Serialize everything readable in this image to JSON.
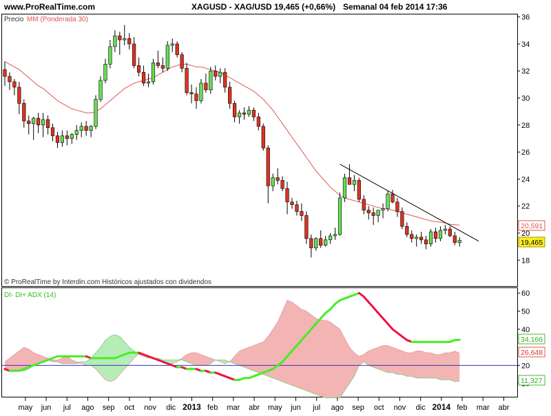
{
  "header": {
    "site": "www.ProRealTime.com",
    "instrument": "XAGUSD - XAG/USD",
    "quote": "19,465 (+0,66%)",
    "period": "Semanal  04 feb 2014 17:36"
  },
  "price_panel": {
    "legend_price": "Precio",
    "legend_ma": "MM (Ponderada 30)",
    "footer": "© ProRealTime by Interdin.com  Históricos ajustados con dividendos",
    "y_ticks": [
      "36",
      "34",
      "32",
      "30",
      "28",
      "26",
      "24",
      "22",
      "20",
      "18"
    ],
    "badge_ma": "20,591",
    "badge_price": "19,465"
  },
  "adx_panel": {
    "legend": "DI- DI+ ADX (14)",
    "y_ticks": [
      "60",
      "50",
      "40",
      "20",
      "10"
    ],
    "badge_adx": "34,166",
    "badge_di_minus": "26,648",
    "badge_di_plus": "11,327"
  },
  "x_axis": {
    "labels": [
      "may",
      "jun",
      "jul",
      "ago",
      "sep",
      "oct",
      "nov",
      "dic",
      "2013",
      "feb",
      "mar",
      "abr",
      "may",
      "jun",
      "jul",
      "ago",
      "sep",
      "oct",
      "nov",
      "dic",
      "2014",
      "feb",
      "mar",
      "abr"
    ]
  },
  "colors": {
    "up": "#66dd55",
    "down": "#dd3322",
    "ma": "#dd5555",
    "adx_rising": "#44ee22",
    "adx_falling": "#ee1144",
    "di_minus_fill": "#f3b4b4",
    "di_plus_fill": "#b6edb6",
    "ref_line": "#3333bb",
    "badge_price": "#ffee22"
  },
  "chart_data": [
    {
      "type": "candlestick",
      "title": "XAGUSD - XAG/USD",
      "period": "weekly",
      "ylim": [
        17,
        36.8
      ],
      "y_ticks": [
        18,
        20,
        22,
        24,
        26,
        28,
        30,
        32,
        34,
        36
      ],
      "x_start": "2012-04-02",
      "x_step_days": 7,
      "ohlc": [
        [
          32.1,
          32.7,
          30.9,
          31.6
        ],
        [
          31.6,
          31.9,
          30.6,
          31.2
        ],
        [
          31.2,
          31.4,
          30.2,
          30.8
        ],
        [
          30.8,
          31.2,
          28.8,
          29.6
        ],
        [
          29.6,
          29.9,
          27.8,
          28.3
        ],
        [
          28.3,
          28.7,
          27.3,
          28.1
        ],
        [
          28.1,
          28.6,
          26.9,
          28.5
        ],
        [
          28.5,
          28.9,
          27.4,
          28.0
        ],
        [
          28.0,
          28.9,
          27.1,
          28.4
        ],
        [
          28.4,
          28.7,
          27.3,
          27.8
        ],
        [
          27.8,
          28.1,
          26.8,
          27.2
        ],
        [
          27.2,
          27.5,
          26.3,
          26.7
        ],
        [
          26.7,
          27.6,
          26.4,
          27.2
        ],
        [
          27.2,
          27.6,
          26.5,
          27.0
        ],
        [
          27.0,
          27.4,
          26.6,
          27.3
        ],
        [
          27.3,
          28.0,
          26.9,
          27.6
        ],
        [
          27.6,
          28.2,
          27.1,
          27.9
        ],
        [
          27.9,
          28.3,
          27.2,
          27.6
        ],
        [
          27.6,
          28.0,
          27.1,
          27.9
        ],
        [
          27.9,
          30.2,
          27.7,
          29.9
        ],
        [
          29.9,
          31.6,
          29.7,
          31.3
        ],
        [
          31.3,
          32.9,
          31.1,
          32.5
        ],
        [
          32.5,
          34.3,
          32.2,
          33.8
        ],
        [
          33.8,
          35.0,
          33.4,
          34.6
        ],
        [
          34.6,
          34.9,
          33.2,
          34.3
        ],
        [
          34.3,
          35.4,
          33.9,
          34.4
        ],
        [
          34.4,
          34.8,
          33.6,
          34.0
        ],
        [
          34.0,
          34.5,
          32.2,
          32.4
        ],
        [
          32.4,
          33.0,
          31.6,
          31.9
        ],
        [
          31.9,
          32.4,
          30.9,
          31.1
        ],
        [
          31.1,
          31.8,
          30.8,
          31.2
        ],
        [
          31.2,
          32.9,
          31.0,
          32.6
        ],
        [
          32.6,
          33.5,
          32.2,
          32.4
        ],
        [
          32.4,
          33.0,
          31.9,
          32.2
        ],
        [
          32.2,
          34.2,
          32.0,
          33.9
        ],
        [
          33.9,
          34.4,
          33.4,
          34.0
        ],
        [
          34.0,
          34.2,
          33.0,
          33.2
        ],
        [
          33.2,
          33.4,
          31.9,
          32.2
        ],
        [
          32.2,
          32.6,
          30.2,
          30.4
        ],
        [
          30.4,
          31.0,
          29.6,
          30.3
        ],
        [
          30.3,
          30.8,
          29.2,
          29.8
        ],
        [
          29.8,
          31.4,
          29.6,
          31.1
        ],
        [
          31.1,
          31.8,
          30.4,
          30.6
        ],
        [
          30.6,
          32.3,
          30.3,
          32.0
        ],
        [
          32.0,
          32.4,
          31.3,
          31.6
        ],
        [
          31.6,
          32.2,
          31.1,
          31.9
        ],
        [
          31.9,
          32.2,
          30.4,
          30.8
        ],
        [
          30.8,
          31.2,
          29.2,
          29.6
        ],
        [
          29.6,
          29.8,
          28.2,
          28.6
        ],
        [
          28.6,
          29.1,
          28.1,
          28.9
        ],
        [
          28.9,
          29.3,
          28.4,
          28.8
        ],
        [
          28.8,
          29.4,
          28.6,
          29.1
        ],
        [
          29.1,
          29.3,
          28.3,
          28.6
        ],
        [
          28.6,
          28.9,
          27.6,
          27.9
        ],
        [
          27.9,
          28.1,
          26.1,
          26.3
        ],
        [
          26.3,
          26.5,
          22.2,
          23.5
        ],
        [
          23.5,
          24.4,
          23.1,
          24.1
        ],
        [
          24.1,
          24.8,
          23.6,
          23.9
        ],
        [
          23.9,
          24.2,
          23.1,
          23.3
        ],
        [
          23.3,
          23.8,
          21.4,
          22.3
        ],
        [
          22.3,
          22.6,
          21.8,
          22.1
        ],
        [
          22.1,
          22.4,
          21.3,
          21.6
        ],
        [
          21.6,
          22.2,
          20.9,
          21.3
        ],
        [
          21.3,
          21.6,
          19.2,
          19.6
        ],
        [
          19.6,
          19.9,
          18.2,
          18.9
        ],
        [
          18.9,
          19.7,
          18.7,
          19.6
        ],
        [
          19.6,
          20.2,
          18.9,
          19.1
        ],
        [
          19.1,
          19.8,
          19.0,
          19.5
        ],
        [
          19.5,
          20.0,
          19.2,
          19.8
        ],
        [
          19.8,
          20.4,
          19.5,
          19.9
        ],
        [
          19.9,
          23.0,
          19.8,
          22.6
        ],
        [
          22.6,
          24.4,
          22.3,
          24.1
        ],
        [
          24.1,
          25.1,
          23.6,
          23.6
        ],
        [
          23.6,
          24.3,
          23.1,
          23.9
        ],
        [
          23.9,
          24.1,
          22.3,
          22.5
        ],
        [
          22.5,
          22.8,
          21.4,
          21.7
        ],
        [
          21.7,
          22.0,
          21.0,
          21.5
        ],
        [
          21.5,
          21.9,
          20.6,
          21.3
        ],
        [
          21.3,
          21.7,
          20.8,
          21.7
        ],
        [
          21.7,
          22.2,
          21.1,
          21.8
        ],
        [
          21.8,
          23.1,
          21.6,
          22.9
        ],
        [
          22.9,
          23.2,
          22.2,
          22.3
        ],
        [
          22.3,
          22.6,
          21.2,
          21.6
        ],
        [
          21.6,
          21.9,
          20.3,
          20.5
        ],
        [
          20.5,
          20.8,
          19.7,
          19.9
        ],
        [
          19.9,
          20.2,
          19.3,
          19.6
        ],
        [
          19.6,
          19.9,
          19.0,
          19.7
        ],
        [
          19.7,
          20.1,
          19.2,
          19.5
        ],
        [
          19.5,
          19.8,
          18.8,
          19.2
        ],
        [
          19.2,
          20.3,
          19.0,
          20.1
        ],
        [
          20.1,
          20.4,
          19.3,
          19.6
        ],
        [
          19.6,
          20.5,
          19.4,
          20.2
        ],
        [
          20.2,
          20.6,
          19.9,
          20.3
        ],
        [
          20.3,
          20.5,
          19.7,
          19.8
        ],
        [
          19.8,
          20.1,
          19.1,
          19.3
        ],
        [
          19.3,
          19.7,
          19.0,
          19.465
        ]
      ],
      "series": [
        {
          "name": "MM (Ponderada 30)",
          "values": [
            32.7,
            32.5,
            32.3,
            32.1,
            31.8,
            31.5,
            31.2,
            30.9,
            30.7,
            30.4,
            30.1,
            29.8,
            29.6,
            29.4,
            29.2,
            29.1,
            29.0,
            28.9,
            28.9,
            29.0,
            29.2,
            29.5,
            29.8,
            30.1,
            30.4,
            30.7,
            30.9,
            31.1,
            31.2,
            31.3,
            31.4,
            31.5,
            31.7,
            31.9,
            32.1,
            32.3,
            32.4,
            32.5,
            32.5,
            32.4,
            32.3,
            32.3,
            32.2,
            32.1,
            32.0,
            31.9,
            31.7,
            31.5,
            31.3,
            31.1,
            30.9,
            30.7,
            30.5,
            30.2,
            29.9,
            29.5,
            29.1,
            28.6,
            28.1,
            27.6,
            27.1,
            26.6,
            26.1,
            25.6,
            25.1,
            24.6,
            24.2,
            23.8,
            23.4,
            23.1,
            22.8,
            22.6,
            22.5,
            22.4,
            22.3,
            22.2,
            22.1,
            22.0,
            21.9,
            21.8,
            21.8,
            21.7,
            21.6,
            21.5,
            21.4,
            21.3,
            21.2,
            21.1,
            21.0,
            20.9,
            20.85,
            20.8,
            20.75,
            20.65,
            20.62,
            20.591
          ]
        }
      ],
      "trendline": {
        "from": {
          "week": 70,
          "value": 25.1
        },
        "to": {
          "week": 97,
          "value": 19.0
        }
      },
      "last_values": {
        "price": 19.465,
        "ma": 20.591
      }
    },
    {
      "type": "line",
      "title": "DI- DI+ ADX (14)",
      "ylim": [
        0,
        62
      ],
      "y_ticks": [
        10,
        20,
        40,
        50,
        60
      ],
      "reference_line": 20,
      "series": [
        {
          "name": "ADX",
          "values": [
            18,
            17,
            17,
            17,
            18,
            19,
            20,
            21,
            22,
            23,
            24,
            25,
            25,
            25,
            25,
            25,
            25,
            25,
            24,
            24,
            24,
            24,
            24,
            24,
            25,
            26,
            27,
            27,
            27,
            26,
            25,
            24,
            23,
            22,
            21,
            20,
            19,
            19,
            18,
            18,
            18,
            17,
            17,
            16,
            16,
            15,
            14,
            13,
            12,
            12,
            13,
            13,
            14,
            15,
            16,
            17,
            18,
            20,
            22,
            25,
            28,
            31,
            34,
            37,
            40,
            43,
            46,
            49,
            51,
            54,
            56,
            57,
            58,
            59,
            60,
            58,
            55,
            52,
            49,
            46,
            43,
            40,
            38,
            36,
            34,
            33,
            33,
            33,
            33,
            33,
            33,
            33,
            33,
            33,
            34,
            34.166
          ]
        },
        {
          "name": "DI-",
          "values": [
            22,
            24,
            26,
            28,
            30,
            29,
            27,
            26,
            25,
            24,
            23,
            23,
            24,
            25,
            23,
            22,
            21,
            20,
            20,
            18,
            15,
            12,
            11,
            12,
            15,
            18,
            21,
            24,
            27,
            26,
            25,
            24,
            23,
            22,
            21,
            21,
            22,
            24,
            26,
            27,
            27,
            26,
            25,
            24,
            23,
            22,
            21,
            22,
            25,
            28,
            29,
            30,
            31,
            32,
            33,
            36,
            40,
            44,
            50,
            56,
            55,
            53,
            51,
            50,
            48,
            46,
            45,
            45,
            44,
            42,
            40,
            35,
            30,
            27,
            25,
            26,
            28,
            29,
            30,
            31,
            31,
            30,
            29,
            28,
            27,
            27,
            28,
            28,
            27,
            27,
            26,
            26,
            27,
            27,
            28,
            26.648
          ]
        },
        {
          "name": "DI+",
          "values": [
            18,
            17,
            17,
            17,
            17,
            18,
            20,
            21,
            22,
            23,
            22,
            22,
            21,
            21,
            21,
            21,
            22,
            22,
            24,
            27,
            30,
            34,
            36,
            37,
            36,
            33,
            30,
            28,
            26,
            25,
            24,
            24,
            24,
            23,
            23,
            23,
            23,
            23,
            22,
            21,
            20,
            20,
            20,
            21,
            23,
            23,
            23,
            22,
            21,
            20,
            19,
            18,
            17,
            16,
            15,
            14,
            13,
            12,
            11,
            10,
            9,
            8,
            7,
            6,
            5,
            4,
            3,
            2,
            2,
            2,
            2,
            6,
            10,
            14,
            20,
            22,
            20,
            19,
            18,
            17,
            16,
            16,
            15,
            15,
            14,
            14,
            13,
            13,
            13,
            13,
            13,
            12,
            12,
            12,
            11,
            11.327
          ]
        }
      ],
      "last_values": {
        "adx": 34.166,
        "di_minus": 26.648,
        "di_plus": 11.327
      }
    }
  ]
}
